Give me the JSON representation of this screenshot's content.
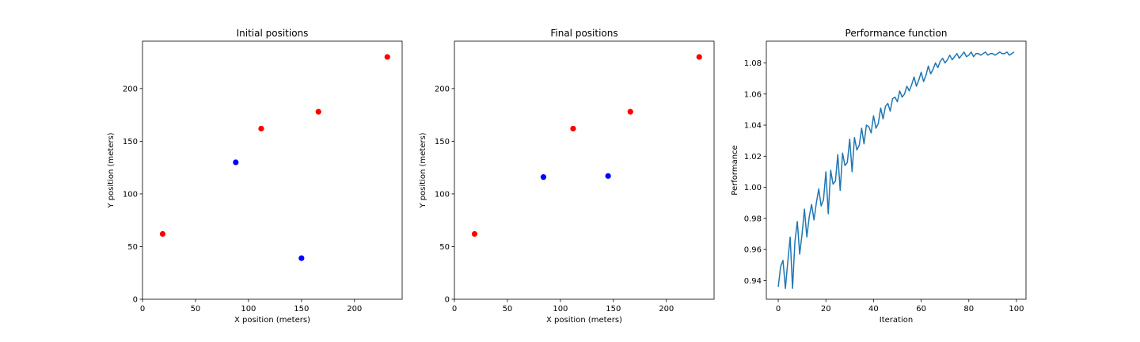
{
  "chart_data": [
    {
      "type": "scatter",
      "title": "Initial positions",
      "xlabel": "X position (meters)",
      "ylabel": "Y position (meters)",
      "xlim": [
        0,
        245
      ],
      "ylim": [
        0,
        245
      ],
      "xticks": [
        0,
        50,
        100,
        150,
        200
      ],
      "yticks": [
        0,
        50,
        100,
        150,
        200
      ],
      "grid": false,
      "series": [
        {
          "color": "#ff0000",
          "points": [
            [
              19,
              62
            ],
            [
              112,
              162
            ],
            [
              166,
              178
            ],
            [
              231,
              230
            ]
          ]
        },
        {
          "color": "#0000ff",
          "points": [
            [
              88,
              130
            ],
            [
              150,
              39
            ]
          ]
        }
      ]
    },
    {
      "type": "scatter",
      "title": "Final positions",
      "xlabel": "X position (meters)",
      "ylabel": "Y position (meters)",
      "xlim": [
        0,
        245
      ],
      "ylim": [
        0,
        245
      ],
      "xticks": [
        0,
        50,
        100,
        150,
        200
      ],
      "yticks": [
        0,
        50,
        100,
        150,
        200
      ],
      "grid": false,
      "series": [
        {
          "color": "#ff0000",
          "points": [
            [
              19,
              62
            ],
            [
              112,
              162
            ],
            [
              166,
              178
            ],
            [
              231,
              230
            ]
          ]
        },
        {
          "color": "#0000ff",
          "points": [
            [
              84,
              116
            ],
            [
              145,
              117
            ]
          ]
        }
      ]
    },
    {
      "type": "line",
      "title": "Performance function",
      "xlabel": "Iteration",
      "ylabel": "Performance",
      "xlim": [
        -5,
        104
      ],
      "ylim": [
        0.928,
        1.094
      ],
      "xticks": [
        0,
        20,
        40,
        60,
        80,
        100
      ],
      "yticks": [
        0.94,
        0.96,
        0.98,
        1.0,
        1.02,
        1.04,
        1.06,
        1.08
      ],
      "ytick_labels": [
        "0.94",
        "0.96",
        "0.98",
        "1.00",
        "1.02",
        "1.04",
        "1.06",
        "1.08"
      ],
      "grid": false,
      "series": [
        {
          "color": "#1f77b4",
          "x": [
            0,
            1,
            2,
            3,
            4,
            5,
            6,
            7,
            8,
            9,
            10,
            11,
            12,
            13,
            14,
            15,
            16,
            17,
            18,
            19,
            20,
            21,
            22,
            23,
            24,
            25,
            26,
            27,
            28,
            29,
            30,
            31,
            32,
            33,
            34,
            35,
            36,
            37,
            38,
            39,
            40,
            41,
            42,
            43,
            44,
            45,
            46,
            47,
            48,
            49,
            50,
            51,
            52,
            53,
            54,
            55,
            56,
            57,
            58,
            59,
            60,
            61,
            62,
            63,
            64,
            65,
            66,
            67,
            68,
            69,
            70,
            71,
            72,
            73,
            74,
            75,
            76,
            77,
            78,
            79,
            80,
            81,
            82,
            83,
            84,
            85,
            86,
            87,
            88,
            89,
            90,
            91,
            92,
            93,
            94,
            95,
            96,
            97,
            98,
            99
          ],
          "y": [
            0.936,
            0.949,
            0.953,
            0.935,
            0.952,
            0.968,
            0.935,
            0.965,
            0.978,
            0.957,
            0.97,
            0.986,
            0.968,
            0.981,
            0.989,
            0.979,
            0.99,
            0.999,
            0.988,
            0.992,
            1.01,
            0.983,
            1.011,
            1.002,
            1.004,
            1.021,
            0.998,
            1.022,
            1.014,
            1.016,
            1.031,
            1.01,
            1.032,
            1.024,
            1.027,
            1.038,
            1.028,
            1.04,
            1.039,
            1.035,
            1.046,
            1.038,
            1.041,
            1.051,
            1.044,
            1.052,
            1.054,
            1.049,
            1.057,
            1.058,
            1.055,
            1.062,
            1.058,
            1.06,
            1.065,
            1.062,
            1.066,
            1.071,
            1.065,
            1.069,
            1.074,
            1.068,
            1.072,
            1.078,
            1.073,
            1.076,
            1.08,
            1.077,
            1.081,
            1.083,
            1.08,
            1.082,
            1.085,
            1.082,
            1.084,
            1.086,
            1.083,
            1.085,
            1.087,
            1.084,
            1.085,
            1.087,
            1.084,
            1.086,
            1.086,
            1.085,
            1.086,
            1.087,
            1.085,
            1.086,
            1.086,
            1.085,
            1.086,
            1.087,
            1.086,
            1.086,
            1.087,
            1.085,
            1.086,
            1.087
          ]
        }
      ]
    }
  ]
}
